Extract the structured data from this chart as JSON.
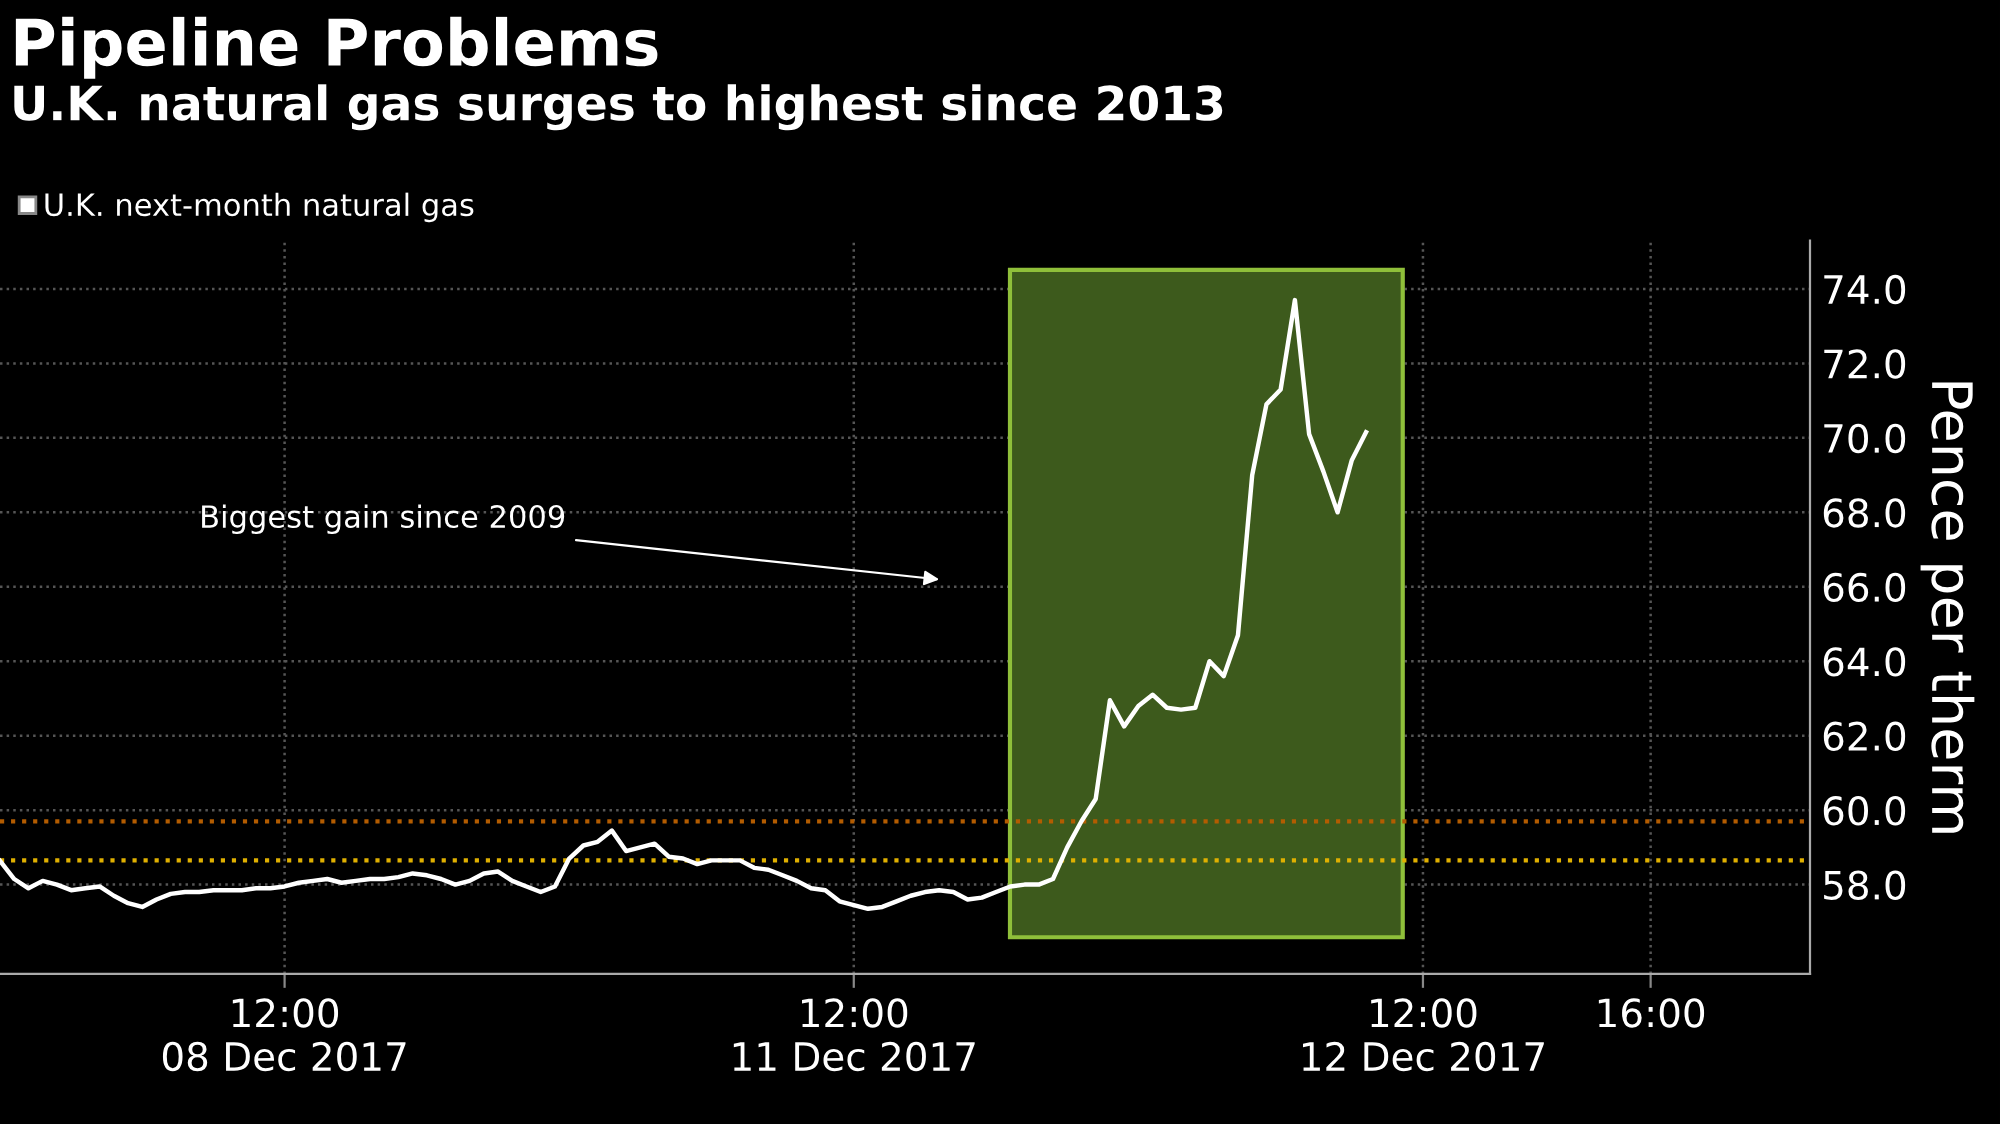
{
  "chart_data": {
    "type": "line",
    "title": "Pipeline Problems",
    "subtitle": "U.K. natural gas surges to highest since 2013",
    "ylabel": "Pence per therm",
    "categories": [
      null,
      null,
      null,
      null,
      null,
      null,
      null,
      null,
      null,
      null,
      null,
      null,
      null,
      null,
      null,
      null,
      null,
      null,
      null,
      null,
      "12:00\n08 Dec 2017",
      null,
      null,
      null,
      null,
      null,
      null,
      null,
      null,
      null,
      null,
      null,
      null,
      null,
      null,
      null,
      null,
      null,
      null,
      null,
      null,
      null,
      null,
      null,
      null,
      null,
      null,
      null,
      null,
      null,
      null,
      null,
      null,
      null,
      null,
      null,
      null,
      null,
      null,
      null,
      "12:00\n11 Dec 2017",
      null,
      null,
      null,
      null,
      null,
      null,
      null,
      null,
      null,
      null,
      null,
      null,
      null,
      null,
      null,
      null,
      null,
      null,
      null,
      null,
      null,
      null,
      null,
      null,
      null,
      null,
      null,
      null,
      null,
      null,
      null,
      null,
      null,
      null,
      null,
      null,
      null,
      null,
      null,
      "12:00\n12 Dec 2017",
      null,
      null,
      null,
      null,
      null,
      null,
      null,
      null,
      null,
      null,
      null,
      null,
      null,
      null,
      null,
      "16:00",
      null,
      null,
      null,
      null,
      null,
      null,
      null,
      null,
      null,
      null,
      null
    ],
    "series": [
      {
        "name": "U.K. next-month natural gas",
        "color": "#ffffff",
        "values": [
          58.64,
          58.15,
          57.9,
          58.1,
          58.0,
          57.85,
          57.9,
          57.95,
          57.7,
          57.5,
          57.4,
          57.6,
          57.75,
          57.8,
          57.8,
          57.85,
          57.85,
          57.85,
          57.9,
          57.9,
          57.95,
          58.05,
          58.1,
          58.15,
          58.05,
          58.1,
          58.15,
          58.15,
          58.2,
          58.3,
          58.25,
          58.15,
          58.0,
          58.1,
          58.3,
          58.35,
          58.1,
          57.95,
          57.8,
          57.95,
          58.7,
          59.05,
          59.15,
          59.45,
          58.9,
          59.0,
          59.1,
          58.75,
          58.7,
          58.55,
          58.65,
          58.65,
          58.65,
          58.45,
          58.4,
          58.25,
          58.1,
          57.9,
          57.85,
          57.55,
          57.45,
          57.35,
          57.4,
          57.55,
          57.7,
          57.8,
          57.85,
          57.8,
          57.6,
          57.65,
          57.8,
          57.95,
          58.0,
          58.0,
          58.15,
          59.0,
          59.7,
          60.3,
          62.95,
          62.25,
          62.8,
          63.1,
          62.75,
          62.7,
          62.75,
          64.0,
          63.6,
          64.7,
          69.0,
          70.9,
          71.3,
          73.7,
          70.1,
          69.1,
          68.0,
          69.4,
          70.15,
          null,
          null,
          null,
          null,
          null,
          null,
          null,
          null,
          null,
          null,
          null,
          null,
          null,
          null,
          null,
          null,
          null,
          null,
          null,
          null,
          null,
          null,
          null,
          null,
          null,
          null,
          null,
          null,
          null,
          null,
          null
        ]
      }
    ],
    "ylim": [
      55.6,
      75.3
    ],
    "yticks": [
      {
        "value": 58,
        "label": "58.0"
      },
      {
        "value": 60,
        "label": "60.0"
      },
      {
        "value": 62,
        "label": "62.0"
      },
      {
        "value": 64,
        "label": "64.0"
      },
      {
        "value": 66,
        "label": "66.0"
      },
      {
        "value": 68,
        "label": "68.0"
      },
      {
        "value": 70,
        "label": "70.0"
      },
      {
        "value": 72,
        "label": "72.0"
      },
      {
        "value": 74,
        "label": "74.0"
      }
    ],
    "ref_lines": [
      {
        "axis": "y",
        "value": 59.7,
        "label": null,
        "color": "#b35c00",
        "line_style": "dotted"
      },
      {
        "axis": "y",
        "value": 58.65,
        "label": null,
        "color": "#e0b000",
        "line_style": "dotted"
      }
    ],
    "annotations": [
      "Biggest gain since 2009"
    ],
    "grid": true,
    "legend": "top left",
    "marker": "none",
    "line_style": "solid"
  }
}
